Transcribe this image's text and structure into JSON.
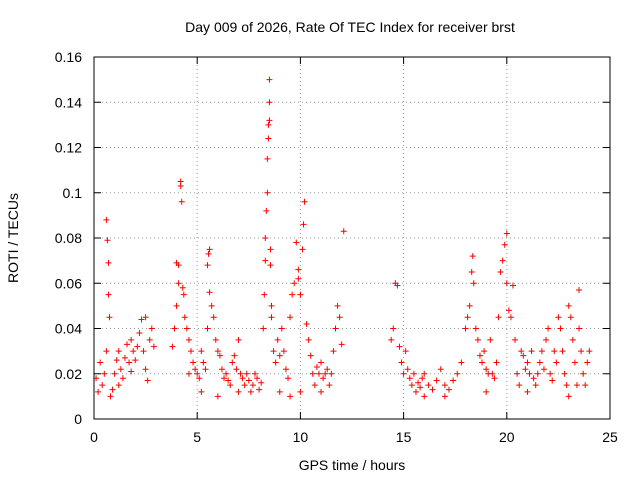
{
  "chart_data": {
    "type": "scatter",
    "title": "Day 009 of 2026, Rate Of TEC Index for receiver brst",
    "xlabel": "GPS time / hours",
    "ylabel": "ROTI / TECUs",
    "xlim": [
      0,
      25
    ],
    "ylim": [
      0,
      0.16
    ],
    "x_ticks": [
      0,
      5,
      10,
      15,
      20,
      25
    ],
    "y_ticks": [
      0,
      0.02,
      0.04,
      0.06,
      0.08,
      0.1,
      0.12,
      0.14,
      0.16
    ],
    "x_tick_labels": [
      "0",
      "5",
      "10",
      "15",
      "20",
      "25"
    ],
    "y_tick_labels": [
      "0",
      "0.02",
      "0.04",
      "0.06",
      "0.08",
      "0.1",
      "0.12",
      "0.14",
      "0.16"
    ],
    "grid": true,
    "marker": "+",
    "marker_color": "#ff0000",
    "series": [
      {
        "name": "ROTI",
        "points": [
          [
            0.1,
            0.018
          ],
          [
            0.2,
            0.012
          ],
          [
            0.3,
            0.025
          ],
          [
            0.4,
            0.015
          ],
          [
            0.5,
            0.02
          ],
          [
            0.6,
            0.03
          ],
          [
            0.6,
            0.088
          ],
          [
            0.65,
            0.079
          ],
          [
            0.7,
            0.069
          ],
          [
            0.7,
            0.055
          ],
          [
            0.75,
            0.045
          ],
          [
            0.8,
            0.01
          ],
          [
            0.9,
            0.013
          ],
          [
            1.0,
            0.02
          ],
          [
            1.1,
            0.026
          ],
          [
            1.2,
            0.03
          ],
          [
            1.3,
            0.022
          ],
          [
            1.4,
            0.018
          ],
          [
            1.5,
            0.027
          ],
          [
            1.6,
            0.033
          ],
          [
            1.7,
            0.025
          ],
          [
            1.8,
            0.021
          ],
          [
            1.9,
            0.03
          ],
          [
            2.0,
            0.026
          ],
          [
            2.1,
            0.032
          ],
          [
            2.2,
            0.038
          ],
          [
            2.3,
            0.044
          ],
          [
            2.4,
            0.03
          ],
          [
            2.5,
            0.022
          ],
          [
            2.6,
            0.017
          ],
          [
            2.7,
            0.035
          ],
          [
            2.8,
            0.04
          ],
          [
            2.9,
            0.032
          ],
          [
            1.2,
            0.015
          ],
          [
            1.8,
            0.035
          ],
          [
            2.5,
            0.045
          ],
          [
            3.8,
            0.032
          ],
          [
            3.9,
            0.04
          ],
          [
            4.0,
            0.05
          ],
          [
            4.0,
            0.069
          ],
          [
            4.1,
            0.06
          ],
          [
            4.1,
            0.068
          ],
          [
            4.2,
            0.103
          ],
          [
            4.2,
            0.105
          ],
          [
            4.25,
            0.096
          ],
          [
            4.3,
            0.058
          ],
          [
            4.35,
            0.055
          ],
          [
            4.4,
            0.045
          ],
          [
            4.5,
            0.04
          ],
          [
            4.6,
            0.035
          ],
          [
            4.7,
            0.03
          ],
          [
            4.8,
            0.025
          ],
          [
            4.9,
            0.022
          ],
          [
            5.0,
            0.02
          ],
          [
            5.1,
            0.018
          ],
          [
            5.2,
            0.03
          ],
          [
            5.3,
            0.025
          ],
          [
            5.4,
            0.022
          ],
          [
            5.5,
            0.04
          ],
          [
            5.5,
            0.068
          ],
          [
            5.55,
            0.073
          ],
          [
            5.6,
            0.075
          ],
          [
            5.6,
            0.056
          ],
          [
            5.7,
            0.05
          ],
          [
            5.8,
            0.045
          ],
          [
            5.9,
            0.035
          ],
          [
            6.0,
            0.03
          ],
          [
            6.1,
            0.028
          ],
          [
            6.2,
            0.022
          ],
          [
            6.3,
            0.018
          ],
          [
            6.4,
            0.02
          ],
          [
            6.5,
            0.017
          ],
          [
            6.6,
            0.015
          ],
          [
            6.7,
            0.025
          ],
          [
            6.8,
            0.028
          ],
          [
            6.9,
            0.022
          ],
          [
            7.0,
            0.035
          ],
          [
            7.1,
            0.02
          ],
          [
            7.2,
            0.018
          ],
          [
            7.3,
            0.015
          ],
          [
            7.4,
            0.02
          ],
          [
            7.5,
            0.017
          ],
          [
            7.6,
            0.012
          ],
          [
            7.7,
            0.015
          ],
          [
            7.8,
            0.02
          ],
          [
            7.9,
            0.018
          ],
          [
            8.0,
            0.013
          ],
          [
            8.1,
            0.016
          ],
          [
            4.6,
            0.02
          ],
          [
            5.2,
            0.012
          ],
          [
            6.0,
            0.01
          ],
          [
            7.0,
            0.012
          ],
          [
            8.2,
            0.04
          ],
          [
            8.25,
            0.055
          ],
          [
            8.3,
            0.07
          ],
          [
            8.3,
            0.08
          ],
          [
            8.35,
            0.092
          ],
          [
            8.4,
            0.1
          ],
          [
            8.4,
            0.115
          ],
          [
            8.45,
            0.124
          ],
          [
            8.45,
            0.13
          ],
          [
            8.5,
            0.132
          ],
          [
            8.5,
            0.14
          ],
          [
            8.5,
            0.15
          ],
          [
            8.55,
            0.075
          ],
          [
            8.55,
            0.068
          ],
          [
            8.6,
            0.05
          ],
          [
            8.6,
            0.045
          ],
          [
            8.7,
            0.03
          ],
          [
            8.8,
            0.025
          ],
          [
            8.9,
            0.035
          ],
          [
            9.0,
            0.028
          ],
          [
            9.1,
            0.04
          ],
          [
            9.2,
            0.03
          ],
          [
            9.3,
            0.022
          ],
          [
            9.4,
            0.018
          ],
          [
            9.5,
            0.045
          ],
          [
            9.6,
            0.055
          ],
          [
            9.7,
            0.06
          ],
          [
            9.8,
            0.078
          ],
          [
            9.9,
            0.066
          ],
          [
            9.9,
            0.062
          ],
          [
            10.0,
            0.055
          ],
          [
            10.1,
            0.075
          ],
          [
            10.15,
            0.086
          ],
          [
            10.2,
            0.096
          ],
          [
            10.3,
            0.042
          ],
          [
            10.4,
            0.035
          ],
          [
            10.5,
            0.028
          ],
          [
            10.6,
            0.02
          ],
          [
            10.7,
            0.015
          ],
          [
            10.8,
            0.023
          ],
          [
            10.9,
            0.02
          ],
          [
            11.0,
            0.025
          ],
          [
            11.1,
            0.018
          ],
          [
            11.2,
            0.02
          ],
          [
            11.3,
            0.022
          ],
          [
            11.4,
            0.015
          ],
          [
            11.5,
            0.02
          ],
          [
            11.6,
            0.03
          ],
          [
            11.7,
            0.04
          ],
          [
            11.8,
            0.05
          ],
          [
            11.9,
            0.045
          ],
          [
            12.0,
            0.033
          ],
          [
            12.1,
            0.083
          ],
          [
            9.0,
            0.012
          ],
          [
            9.5,
            0.01
          ],
          [
            10.0,
            0.012
          ],
          [
            11.0,
            0.012
          ],
          [
            14.4,
            0.035
          ],
          [
            14.5,
            0.04
          ],
          [
            14.6,
            0.06
          ],
          [
            14.7,
            0.059
          ],
          [
            14.8,
            0.032
          ],
          [
            14.9,
            0.025
          ],
          [
            15.0,
            0.02
          ],
          [
            15.1,
            0.03
          ],
          [
            15.2,
            0.022
          ],
          [
            15.3,
            0.018
          ],
          [
            15.4,
            0.015
          ],
          [
            15.5,
            0.02
          ],
          [
            15.6,
            0.012
          ],
          [
            15.7,
            0.016
          ],
          [
            15.8,
            0.014
          ],
          [
            15.9,
            0.018
          ],
          [
            16.0,
            0.02
          ],
          [
            16.2,
            0.015
          ],
          [
            16.4,
            0.013
          ],
          [
            16.6,
            0.017
          ],
          [
            16.8,
            0.022
          ],
          [
            17.0,
            0.015
          ],
          [
            17.2,
            0.013
          ],
          [
            17.4,
            0.017
          ],
          [
            17.6,
            0.02
          ],
          [
            17.8,
            0.025
          ],
          [
            18.0,
            0.04
          ],
          [
            18.1,
            0.045
          ],
          [
            18.2,
            0.05
          ],
          [
            18.3,
            0.065
          ],
          [
            18.35,
            0.072
          ],
          [
            18.4,
            0.06
          ],
          [
            18.5,
            0.04
          ],
          [
            18.6,
            0.035
          ],
          [
            18.7,
            0.028
          ],
          [
            18.8,
            0.025
          ],
          [
            18.9,
            0.03
          ],
          [
            19.0,
            0.022
          ],
          [
            19.1,
            0.02
          ],
          [
            19.2,
            0.035
          ],
          [
            19.3,
            0.02
          ],
          [
            19.4,
            0.018
          ],
          [
            19.5,
            0.025
          ],
          [
            19.6,
            0.045
          ],
          [
            19.7,
            0.065
          ],
          [
            19.8,
            0.07
          ],
          [
            19.9,
            0.077
          ],
          [
            20.0,
            0.082
          ],
          [
            20.0,
            0.06
          ],
          [
            20.1,
            0.048
          ],
          [
            20.2,
            0.045
          ],
          [
            20.3,
            0.059
          ],
          [
            20.4,
            0.035
          ],
          [
            20.5,
            0.02
          ],
          [
            20.6,
            0.015
          ],
          [
            20.7,
            0.03
          ],
          [
            20.8,
            0.028
          ],
          [
            20.9,
            0.022
          ],
          [
            21.0,
            0.025
          ],
          [
            21.1,
            0.02
          ],
          [
            21.2,
            0.03
          ],
          [
            21.3,
            0.018
          ],
          [
            21.4,
            0.015
          ],
          [
            21.5,
            0.02
          ],
          [
            21.6,
            0.025
          ],
          [
            21.7,
            0.03
          ],
          [
            21.8,
            0.022
          ],
          [
            21.9,
            0.035
          ],
          [
            22.0,
            0.04
          ],
          [
            22.1,
            0.02
          ],
          [
            22.2,
            0.017
          ],
          [
            22.3,
            0.03
          ],
          [
            22.4,
            0.025
          ],
          [
            22.5,
            0.045
          ],
          [
            22.6,
            0.04
          ],
          [
            22.7,
            0.03
          ],
          [
            22.8,
            0.02
          ],
          [
            22.9,
            0.015
          ],
          [
            23.0,
            0.05
          ],
          [
            23.1,
            0.045
          ],
          [
            23.2,
            0.035
          ],
          [
            23.3,
            0.025
          ],
          [
            23.4,
            0.015
          ],
          [
            23.5,
            0.057
          ],
          [
            23.5,
            0.04
          ],
          [
            23.6,
            0.03
          ],
          [
            23.7,
            0.02
          ],
          [
            23.8,
            0.015
          ],
          [
            23.9,
            0.025
          ],
          [
            24.0,
            0.03
          ],
          [
            16.0,
            0.01
          ],
          [
            17.0,
            0.01
          ],
          [
            19.0,
            0.012
          ],
          [
            21.0,
            0.012
          ],
          [
            23.0,
            0.01
          ]
        ]
      }
    ]
  }
}
